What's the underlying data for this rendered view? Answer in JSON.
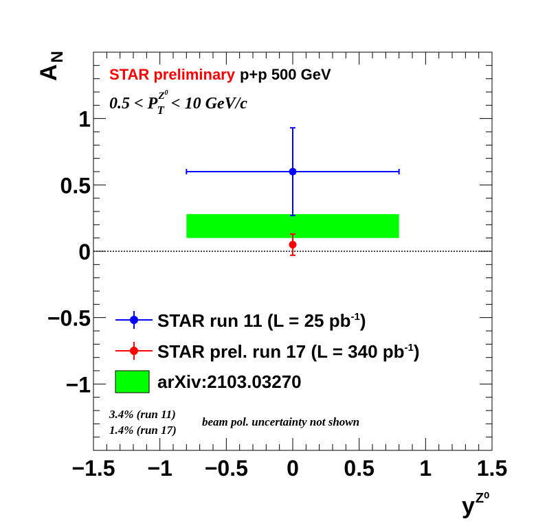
{
  "chart_data": {
    "type": "scatter",
    "xlabel": "y",
    "xlabel_sup": "Z⁰",
    "ylabel": "A",
    "ylabel_sub": "N",
    "xlim": [
      -1.5,
      1.5
    ],
    "ylim": [
      -1.5,
      1.5
    ],
    "xticks": [
      -1.5,
      -1,
      -0.5,
      0,
      0.5,
      1,
      1.5
    ],
    "xtick_labels": [
      "−1.5",
      "−1",
      "−0.5",
      "0",
      "0.5",
      "1",
      "1.5"
    ],
    "yticks": [
      -1,
      -0.5,
      0,
      0.5,
      1
    ],
    "ytick_labels": [
      "−1",
      "−0.5",
      "0",
      "0.5",
      "1"
    ],
    "zero_line": true,
    "grid": false,
    "legend_position": "lower-left",
    "series": [
      {
        "name": "STAR run 11 (L = 25 pb-1)",
        "color": "#0000ff",
        "points": [
          {
            "x": 0,
            "y": 0.6,
            "xerr": 0.8,
            "yerr_up": 0.33,
            "yerr_down": 0.33
          }
        ]
      },
      {
        "name": "STAR prel. run 17 (L = 340 pb-1)",
        "color": "#ff0000",
        "points": [
          {
            "x": 0,
            "y": 0.05,
            "xerr": 0,
            "yerr_up": 0.08,
            "yerr_down": 0.08
          }
        ]
      }
    ],
    "bands": [
      {
        "name": "arXiv:2103.03270",
        "color": "#00ff00",
        "x_range": [
          -0.8,
          0.8
        ],
        "y_range": [
          0.1,
          0.28
        ]
      }
    ]
  },
  "annotations": {
    "star_label": "STAR preliminary",
    "collision_label": "p+p 500 GeV",
    "kin_lead": "0.5 < P",
    "kin_sup": "Z",
    "kin_sup2": "0",
    "kin_sub": "T",
    "kin_tail": "< 10 GeV/c",
    "pol_run11": "3.4% (run 11)",
    "pol_run17": "1.4% (run 17)",
    "pol_note": "beam pol. uncertainty not shown"
  },
  "legend": {
    "items": [
      {
        "text": "STAR run 11 (L = 25 pb",
        "sup": "-1",
        "tail": ")"
      },
      {
        "text": "STAR prel. run 17 (L = 340 pb",
        "sup": "-1",
        "tail": ")"
      },
      {
        "text": "arXiv:2103.03270",
        "sup": "",
        "tail": ""
      }
    ]
  },
  "colors": {
    "star_red": "#ff0000",
    "run11_blue": "#0000ff",
    "run17_red": "#ff0000",
    "band_green": "#00ff00"
  }
}
